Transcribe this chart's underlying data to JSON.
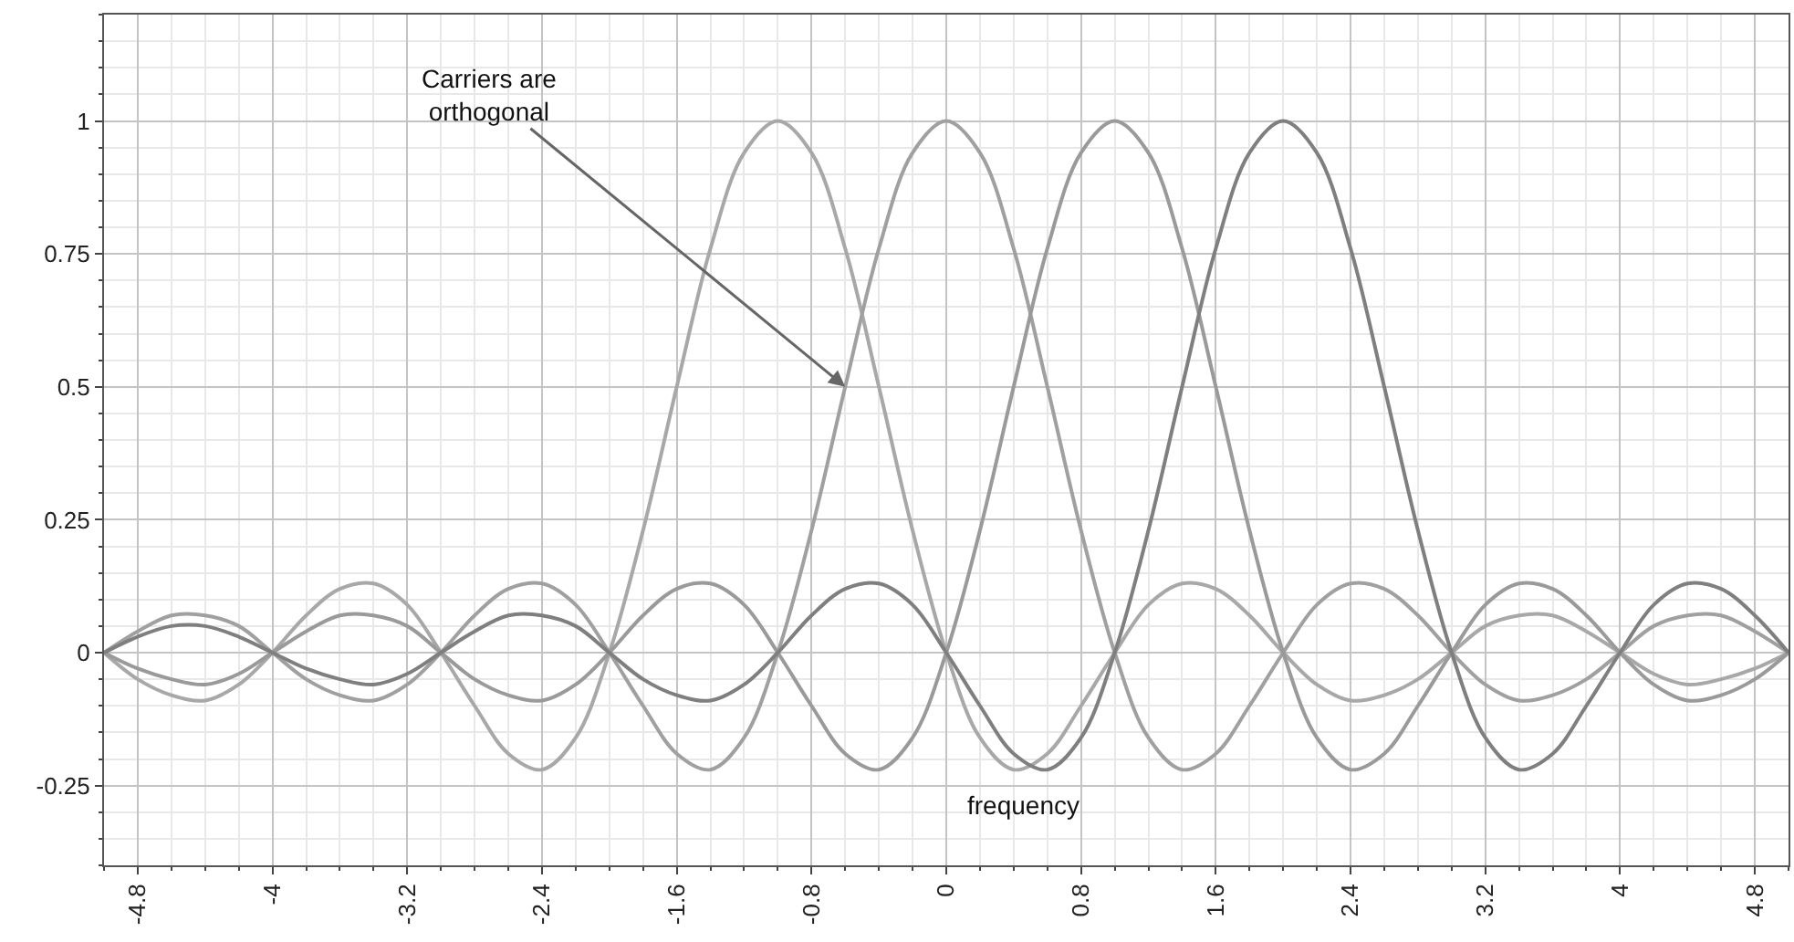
{
  "chart_data": {
    "type": "line",
    "xlabel": "frequency",
    "x": [
      -5,
      -4.8,
      -4.6,
      -4.4,
      -4.2,
      -4,
      -3.8,
      -3.6,
      -3.4,
      -3.2,
      -3,
      -2.8,
      -2.6,
      -2.4,
      -2.2,
      -2,
      -1.8,
      -1.6,
      -1.4,
      -1.2,
      -1,
      -0.8,
      -0.6,
      -0.4,
      -0.2,
      0,
      0.2,
      0.4,
      0.6,
      0.8,
      1,
      1.2,
      1.4,
      1.6,
      1.8,
      2,
      2.2,
      2.4,
      2.6,
      2.8,
      3,
      3.2,
      3.4,
      3.6,
      3.8,
      4,
      4.2,
      4.4,
      4.6,
      4.8,
      5
    ],
    "series": [
      {
        "color": "#a8a8a8",
        "values": [
          0,
          -0.05,
          -0.08,
          -0.09,
          -0.06,
          0,
          0.07,
          0.12,
          0.13,
          0.09,
          0,
          -0.1,
          -0.19,
          -0.22,
          -0.16,
          0,
          0.23,
          0.5,
          0.76,
          0.94,
          1,
          0.94,
          0.76,
          0.5,
          0.23,
          0,
          -0.16,
          -0.22,
          -0.19,
          -0.1,
          0,
          0.09,
          0.13,
          0.12,
          0.07,
          0,
          -0.06,
          -0.09,
          -0.08,
          -0.05,
          0,
          0.05,
          0.07,
          0.07,
          0.04,
          0,
          -0.04,
          -0.06,
          -0.05,
          -0.03,
          0
        ]
      },
      {
        "color": "#a0a0a0",
        "values": [
          0,
          0.04,
          0.07,
          0.07,
          0.05,
          0,
          -0.05,
          -0.08,
          -0.09,
          -0.06,
          0,
          0.07,
          0.12,
          0.13,
          0.09,
          0,
          -0.1,
          -0.19,
          -0.22,
          -0.16,
          0,
          0.23,
          0.5,
          0.76,
          0.94,
          1,
          0.94,
          0.76,
          0.5,
          0.23,
          0,
          -0.16,
          -0.22,
          -0.19,
          -0.1,
          0,
          0.09,
          0.13,
          0.12,
          0.07,
          0,
          -0.06,
          -0.09,
          -0.08,
          -0.05,
          0,
          0.05,
          0.07,
          0.07,
          0.04,
          0
        ]
      },
      {
        "color": "#9a9a9a",
        "values": [
          0,
          -0.03,
          -0.05,
          -0.06,
          -0.04,
          0,
          0.04,
          0.07,
          0.07,
          0.05,
          0,
          -0.05,
          -0.08,
          -0.09,
          -0.06,
          0,
          0.07,
          0.12,
          0.13,
          0.09,
          0,
          -0.1,
          -0.19,
          -0.22,
          -0.16,
          0,
          0.23,
          0.5,
          0.76,
          0.94,
          1,
          0.94,
          0.76,
          0.5,
          0.23,
          0,
          -0.16,
          -0.22,
          -0.19,
          -0.1,
          0,
          0.09,
          0.13,
          0.12,
          0.07,
          0,
          -0.06,
          -0.09,
          -0.08,
          -0.05,
          0
        ]
      },
      {
        "color": "#7f7f7f",
        "values": [
          0,
          0.03,
          0.05,
          0.05,
          0.03,
          0,
          -0.03,
          -0.05,
          -0.06,
          -0.04,
          0,
          0.04,
          0.07,
          0.07,
          0.05,
          0,
          -0.05,
          -0.08,
          -0.09,
          -0.06,
          0,
          0.07,
          0.12,
          0.13,
          0.09,
          0,
          -0.1,
          -0.19,
          -0.22,
          -0.16,
          0,
          0.23,
          0.5,
          0.76,
          0.94,
          1,
          0.94,
          0.76,
          0.5,
          0.23,
          0,
          -0.16,
          -0.22,
          -0.19,
          -0.1,
          0,
          0.09,
          0.13,
          0.12,
          0.07,
          0
        ]
      }
    ],
    "xlim": [
      -5,
      5
    ],
    "ylim": [
      -0.4,
      1.2
    ],
    "xticks": [
      -4.8,
      -4,
      -3.2,
      -2.4,
      -1.6,
      -0.8,
      0,
      0.8,
      1.6,
      2.4,
      3.2,
      4,
      4.8
    ],
    "yticks": [
      -0.25,
      0,
      0.25,
      0.5,
      0.75,
      1
    ],
    "grid": true,
    "marker": "none",
    "line_style": "solid",
    "annotations": [
      {
        "text": "Carriers are orthogonal",
        "x": -0.6,
        "y": 0.5
      }
    ]
  }
}
